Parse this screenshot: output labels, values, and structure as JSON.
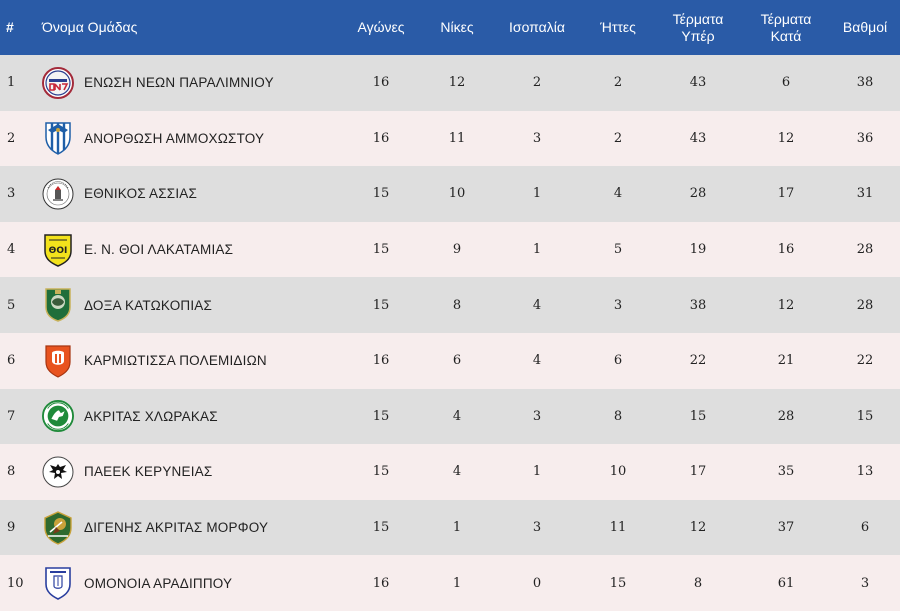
{
  "headers": {
    "rank": "#",
    "team": "Όνομα Ομάδας",
    "played": "Αγώνες",
    "wins": "Νίκες",
    "draws": "Ισοπαλία",
    "losses": "Ήττες",
    "goals_for_1": "Τέρματα",
    "goals_for_2": "Υπέρ",
    "goals_against_1": "Τέρματα",
    "goals_against_2": "Κατά",
    "points": "Βαθμοί"
  },
  "rows": [
    {
      "rank": "1",
      "team": "ΕΝΩΣΗ ΝΕΩΝ ΠΑΡΑΛΙΜΝΙΟΥ",
      "logo": "enp-crest-icon",
      "played": "16",
      "wins": "12",
      "draws": "2",
      "losses": "2",
      "gf": "43",
      "ga": "6",
      "pts": "38"
    },
    {
      "rank": "2",
      "team": "ΑΝΟΡΘΩΣΗ ΑΜΜΟΧΩΣΤΟΥ",
      "logo": "anorthosis-crest-icon",
      "played": "16",
      "wins": "11",
      "draws": "3",
      "losses": "2",
      "gf": "43",
      "ga": "12",
      "pts": "36"
    },
    {
      "rank": "3",
      "team": "ΕΘΝΙΚΟΣ ΑΣΣΙΑΣ",
      "logo": "ethnikos-crest-icon",
      "played": "15",
      "wins": "10",
      "draws": "1",
      "losses": "4",
      "gf": "28",
      "ga": "17",
      "pts": "31"
    },
    {
      "rank": "4",
      "team": "Ε. Ν. ΘΟΙ ΛΑΚΑΤΑΜΙΑΣ",
      "logo": "thoi-crest-icon",
      "played": "15",
      "wins": "9",
      "draws": "1",
      "losses": "5",
      "gf": "19",
      "ga": "16",
      "pts": "28"
    },
    {
      "rank": "5",
      "team": "ΔΟΞΑ ΚΑΤΩΚΟΠΙΑΣ",
      "logo": "doxa-crest-icon",
      "played": "15",
      "wins": "8",
      "draws": "4",
      "losses": "3",
      "gf": "38",
      "ga": "12",
      "pts": "28"
    },
    {
      "rank": "6",
      "team": "ΚΑΡΜΙΩΤΙΣΣΑ ΠΟΛΕΜΙΔΙΩΝ",
      "logo": "karmiotissa-crest-icon",
      "played": "16",
      "wins": "6",
      "draws": "4",
      "losses": "6",
      "gf": "22",
      "ga": "21",
      "pts": "22"
    },
    {
      "rank": "7",
      "team": "ΑΚΡΙΤΑΣ ΧΛΩΡΑΚΑΣ",
      "logo": "akritas-crest-icon",
      "played": "15",
      "wins": "4",
      "draws": "3",
      "losses": "8",
      "gf": "15",
      "ga": "28",
      "pts": "15"
    },
    {
      "rank": "8",
      "team": "ΠΑΕΕΚ ΚΕΡΥΝΕΙΑΣ",
      "logo": "paeek-crest-icon",
      "played": "15",
      "wins": "4",
      "draws": "1",
      "losses": "10",
      "gf": "17",
      "ga": "35",
      "pts": "13"
    },
    {
      "rank": "9",
      "team": "ΔΙΓΕΝΗΣ ΑΚΡΙΤΑΣ ΜΟΡΦΟΥ",
      "logo": "digenis-crest-icon",
      "played": "15",
      "wins": "1",
      "draws": "3",
      "losses": "11",
      "gf": "12",
      "ga": "37",
      "pts": "6"
    },
    {
      "rank": "10",
      "team": "ΟΜΟΝΟΙΑ ΑΡΑΔΙΠΠΟΥ",
      "logo": "omonoia-crest-icon",
      "played": "16",
      "wins": "1",
      "draws": "0",
      "losses": "15",
      "gf": "8",
      "ga": "61",
      "pts": "3"
    }
  ],
  "colors": {
    "header_bg": "#2a5ba7",
    "row_odd": "#dedede",
    "row_even": "#f7eded"
  }
}
